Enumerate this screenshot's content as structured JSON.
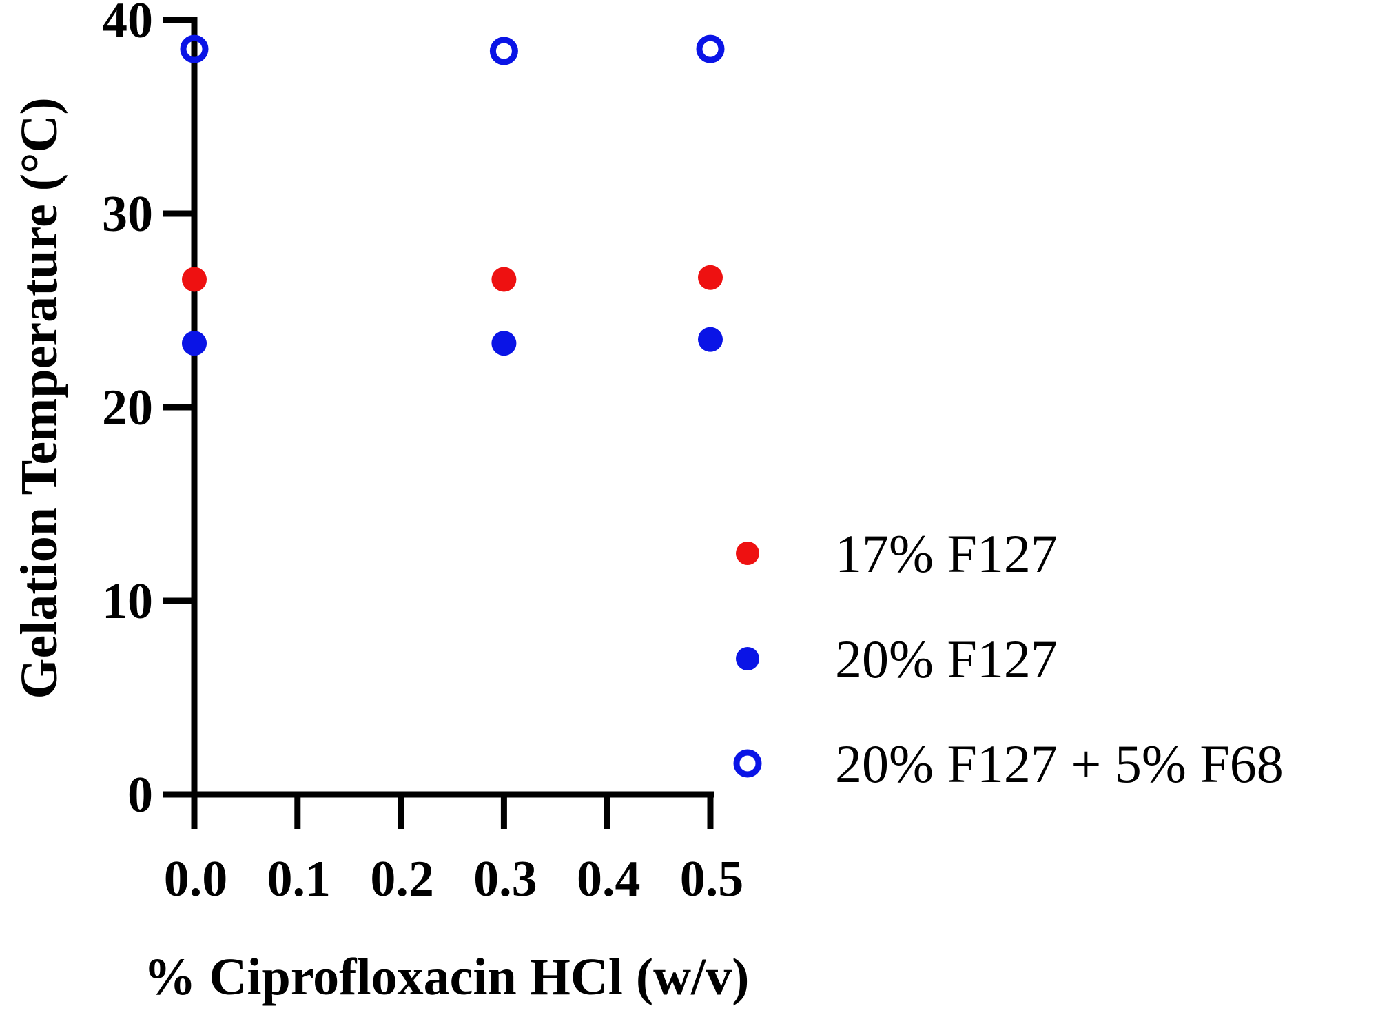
{
  "chart_data": {
    "type": "scatter",
    "title": "",
    "xlabel": "% Ciprofloxacin HCl (w/v)",
    "ylabel": "Gelation Temperature  (°C)",
    "xlim": [
      0.0,
      0.5
    ],
    "ylim": [
      0,
      40
    ],
    "x_ticks": [
      "0.0",
      "0.1",
      "0.2",
      "0.3",
      "0.4",
      "0.5"
    ],
    "y_ticks": [
      "0",
      "10",
      "20",
      "30",
      "40"
    ],
    "grid": false,
    "legend_position": "right",
    "series": [
      {
        "name": "17% F127",
        "marker": "filled-circle",
        "color": "#ee1111",
        "points": [
          {
            "x": 0.0,
            "y": 26.6
          },
          {
            "x": 0.3,
            "y": 26.6
          },
          {
            "x": 0.5,
            "y": 26.7
          }
        ]
      },
      {
        "name": "20% F127",
        "marker": "filled-circle",
        "color": "#0a14e6",
        "points": [
          {
            "x": 0.0,
            "y": 23.3
          },
          {
            "x": 0.3,
            "y": 23.3
          },
          {
            "x": 0.5,
            "y": 23.5
          }
        ]
      },
      {
        "name": "20% F127 + 5% F68",
        "marker": "open-circle",
        "color": "#0a14e6",
        "points": [
          {
            "x": 0.0,
            "y": 38.5
          },
          {
            "x": 0.3,
            "y": 38.4
          },
          {
            "x": 0.5,
            "y": 38.5
          }
        ]
      }
    ]
  }
}
